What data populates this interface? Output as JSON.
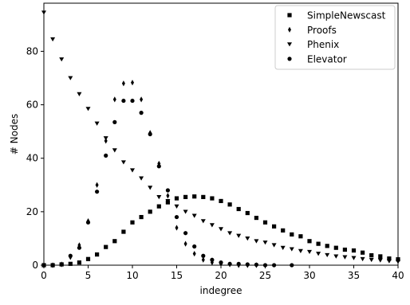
{
  "chart_data": {
    "type": "scatter",
    "title": "",
    "xlabel": "indegree",
    "ylabel": "# Nodes",
    "xlim": [
      0,
      40
    ],
    "ylim": [
      0,
      98
    ],
    "xticks": [
      "0",
      "5",
      "10",
      "15",
      "20",
      "25",
      "30",
      "35",
      "40"
    ],
    "yticks": [
      "0",
      "20",
      "40",
      "60",
      "80"
    ],
    "grid": false,
    "legend_position": "top-right",
    "series": [
      {
        "name": "SimpleNewscast",
        "marker": "square",
        "points": [
          [
            0,
            0
          ],
          [
            1,
            0
          ],
          [
            2,
            0.3
          ],
          [
            3,
            0.5
          ],
          [
            4,
            1
          ],
          [
            5,
            2.3
          ],
          [
            6,
            4
          ],
          [
            7,
            6.8
          ],
          [
            8,
            9
          ],
          [
            9,
            12.5
          ],
          [
            10,
            16
          ],
          [
            11,
            18
          ],
          [
            12,
            20
          ],
          [
            13,
            22
          ],
          [
            14,
            23.5
          ],
          [
            15,
            25
          ],
          [
            16,
            25.5
          ],
          [
            17,
            25.7
          ],
          [
            18,
            25.5
          ],
          [
            19,
            25
          ],
          [
            20,
            24
          ],
          [
            21,
            22.7
          ],
          [
            22,
            21
          ],
          [
            23,
            19.5
          ],
          [
            24,
            17.7
          ],
          [
            25,
            16
          ],
          [
            26,
            14.5
          ],
          [
            27,
            13
          ],
          [
            28,
            11.5
          ],
          [
            29,
            10.8
          ],
          [
            30,
            9
          ],
          [
            31,
            8
          ],
          [
            32,
            7.2
          ],
          [
            33,
            6.5
          ],
          [
            34,
            5.8
          ],
          [
            35,
            5.5
          ],
          [
            36,
            4.7
          ],
          [
            37,
            3.7
          ],
          [
            38,
            3.3
          ],
          [
            39,
            2.5
          ],
          [
            40,
            2.2
          ]
        ]
      },
      {
        "name": "Proofs",
        "marker": "diamond",
        "points": [
          [
            0,
            0
          ],
          [
            1,
            0
          ],
          [
            2,
            0.3
          ],
          [
            3,
            3
          ],
          [
            4,
            7.5
          ],
          [
            5,
            16.5
          ],
          [
            6,
            30
          ],
          [
            7,
            46.5
          ],
          [
            8,
            62
          ],
          [
            9,
            68
          ],
          [
            10,
            68.3
          ],
          [
            11,
            62
          ],
          [
            12,
            49.5
          ],
          [
            13,
            38
          ],
          [
            14,
            26
          ],
          [
            15,
            14
          ],
          [
            16,
            8
          ],
          [
            17,
            4.3
          ],
          [
            18,
            2
          ],
          [
            19,
            1
          ],
          [
            20,
            0.5
          ],
          [
            21,
            0.3
          ],
          [
            22,
            0
          ],
          [
            23,
            0
          ],
          [
            24,
            0
          ]
        ]
      },
      {
        "name": "Phenix",
        "marker": "triangle-down",
        "points": [
          [
            0,
            94.5
          ],
          [
            1,
            84.5
          ],
          [
            2,
            77
          ],
          [
            3,
            70
          ],
          [
            4,
            64
          ],
          [
            5,
            58.5
          ],
          [
            6,
            53
          ],
          [
            7,
            47.5
          ],
          [
            8,
            43
          ],
          [
            9,
            38.5
          ],
          [
            10,
            35.5
          ],
          [
            11,
            32.5
          ],
          [
            12,
            29
          ],
          [
            13,
            25.5
          ],
          [
            14,
            24
          ],
          [
            15,
            22
          ],
          [
            16,
            20
          ],
          [
            17,
            18.5
          ],
          [
            18,
            16.5
          ],
          [
            19,
            15
          ],
          [
            20,
            13.5
          ],
          [
            21,
            12
          ],
          [
            22,
            11
          ],
          [
            23,
            10
          ],
          [
            24,
            9
          ],
          [
            25,
            8.5
          ],
          [
            26,
            7.5
          ],
          [
            27,
            6.5
          ],
          [
            28,
            6
          ],
          [
            29,
            5.3
          ],
          [
            30,
            5
          ],
          [
            31,
            4.3
          ],
          [
            32,
            3.8
          ],
          [
            33,
            3.3
          ],
          [
            34,
            3
          ],
          [
            35,
            2.7
          ],
          [
            36,
            2.3
          ],
          [
            37,
            2
          ],
          [
            38,
            1.8
          ],
          [
            39,
            1.5
          ],
          [
            40,
            1.3
          ]
        ]
      },
      {
        "name": "Elevator",
        "marker": "circle",
        "points": [
          [
            0,
            0
          ],
          [
            1,
            0
          ],
          [
            2,
            0.3
          ],
          [
            3,
            3.5
          ],
          [
            4,
            6.5
          ],
          [
            5,
            16
          ],
          [
            6,
            27.5
          ],
          [
            7,
            41
          ],
          [
            8,
            53.5
          ],
          [
            9,
            61.5
          ],
          [
            10,
            61.5
          ],
          [
            11,
            57
          ],
          [
            12,
            49
          ],
          [
            13,
            37
          ],
          [
            14,
            28
          ],
          [
            15,
            18
          ],
          [
            16,
            12
          ],
          [
            17,
            7
          ],
          [
            18,
            3.5
          ],
          [
            19,
            2
          ],
          [
            20,
            1
          ],
          [
            21,
            0.5
          ],
          [
            22,
            0.5
          ],
          [
            23,
            0.3
          ],
          [
            24,
            0.2
          ],
          [
            25,
            0
          ],
          [
            26,
            0
          ],
          [
            28,
            0
          ]
        ]
      }
    ]
  }
}
